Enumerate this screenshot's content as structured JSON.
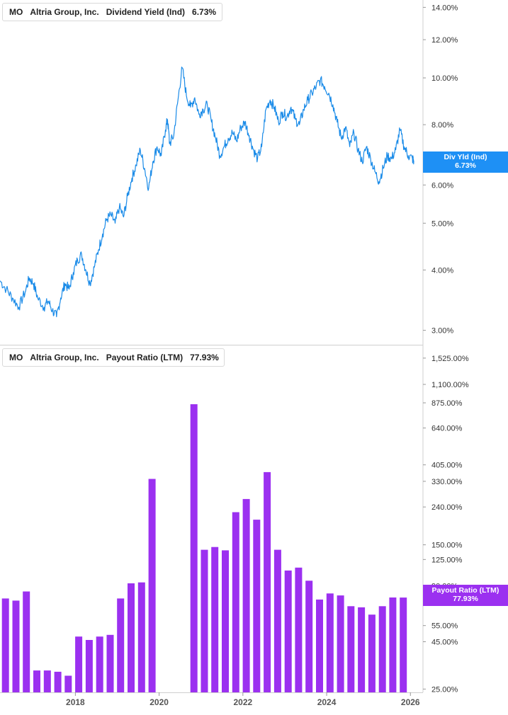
{
  "top_legend": {
    "ticker": "MO",
    "company": "Altria Group, Inc.",
    "metric": "Dividend Yield (Ind)",
    "value": "6.73%"
  },
  "bottom_legend": {
    "ticker": "MO",
    "company": "Altria Group, Inc.",
    "metric": "Payout Ratio (LTM)",
    "value": "77.93%"
  },
  "top_tag": {
    "label": "Div Yld (Ind)",
    "value": "6.73%"
  },
  "bottom_tag": {
    "label": "Payout Ratio (LTM)",
    "value": "77.93%"
  },
  "colors": {
    "yield_line": "#1a8be8",
    "payout_bars": "#9b30f0",
    "yield_tag": "#1e90f5",
    "payout_tag": "#9b30f0"
  },
  "x_ticks": [
    "2018",
    "2020",
    "2022",
    "2024",
    "2026"
  ],
  "chart_data": [
    {
      "type": "line",
      "scale": "log",
      "ylim": [
        2.8,
        14.5
      ],
      "xlim": [
        2016.2,
        2026.3
      ],
      "y_ticks": [
        {
          "value": 14,
          "label": "14.00%"
        },
        {
          "value": 12,
          "label": "12.00%"
        },
        {
          "value": 10,
          "label": "10.00%"
        },
        {
          "value": 8,
          "label": "8.00%"
        },
        {
          "value": 6,
          "label": "6.00%"
        },
        {
          "value": 5,
          "label": "5.00%"
        },
        {
          "value": 4,
          "label": "4.00%"
        },
        {
          "value": 3,
          "label": "3.00%"
        }
      ],
      "series": [
        {
          "x": [
            2016.2,
            2016.35,
            2016.5,
            2016.65,
            2016.8,
            2016.9,
            2017.0,
            2017.1,
            2017.25,
            2017.35,
            2017.45,
            2017.55,
            2017.65,
            2017.75,
            2017.85,
            2017.95,
            2018.05,
            2018.15,
            2018.25,
            2018.35,
            2018.45,
            2018.55,
            2018.65,
            2018.75,
            2018.85,
            2018.95,
            2019.05,
            2019.15,
            2019.25,
            2019.35,
            2019.45,
            2019.55,
            2019.65,
            2019.75,
            2019.85,
            2019.95,
            2020.05,
            2020.15,
            2020.2,
            2020.25,
            2020.35,
            2020.45,
            2020.55,
            2020.65,
            2020.75,
            2020.85,
            2020.95,
            2021.05,
            2021.15,
            2021.25,
            2021.35,
            2021.45,
            2021.55,
            2021.65,
            2021.75,
            2021.85,
            2021.95,
            2022.05,
            2022.15,
            2022.25,
            2022.35,
            2022.45,
            2022.55,
            2022.65,
            2022.75,
            2022.85,
            2022.95,
            2023.05,
            2023.15,
            2023.25,
            2023.35,
            2023.45,
            2023.55,
            2023.65,
            2023.75,
            2023.85,
            2023.95,
            2024.05,
            2024.15,
            2024.25,
            2024.35,
            2024.45,
            2024.55,
            2024.65,
            2024.75,
            2024.85,
            2024.95,
            2025.05,
            2025.15,
            2025.25,
            2025.35,
            2025.45,
            2025.55,
            2025.65,
            2025.75,
            2025.85,
            2025.95,
            2026.05,
            2026.08
          ],
          "y": [
            3.8,
            3.65,
            3.5,
            3.35,
            3.6,
            3.85,
            3.75,
            3.5,
            3.35,
            3.45,
            3.3,
            3.2,
            3.5,
            3.75,
            3.65,
            3.95,
            4.2,
            4.3,
            4.0,
            3.75,
            4.05,
            4.4,
            4.75,
            5.1,
            5.2,
            5.0,
            5.4,
            5.15,
            5.7,
            6.2,
            6.6,
            7.1,
            6.5,
            5.9,
            6.7,
            7.2,
            6.9,
            7.8,
            8.2,
            7.3,
            7.6,
            9.0,
            10.5,
            9.2,
            8.7,
            9.1,
            8.4,
            8.6,
            8.8,
            8.1,
            7.5,
            6.9,
            7.2,
            7.5,
            7.7,
            7.4,
            7.9,
            8.1,
            7.6,
            7.1,
            6.8,
            7.2,
            8.6,
            9.0,
            8.7,
            8.1,
            8.5,
            8.3,
            8.7,
            8.2,
            8.0,
            8.6,
            9.0,
            9.3,
            9.6,
            9.9,
            9.6,
            9.3,
            8.8,
            8.1,
            7.5,
            7.9,
            7.2,
            7.7,
            7.1,
            6.7,
            7.2,
            6.8,
            6.4,
            6.1,
            6.5,
            6.9,
            6.8,
            7.1,
            7.8,
            7.2,
            6.9,
            6.8,
            6.73
          ]
        }
      ]
    },
    {
      "type": "bar",
      "scale": "log",
      "ylim": [
        24,
        1800
      ],
      "xlim": [
        2016.2,
        2026.3
      ],
      "y_ticks": [
        {
          "value": 1525,
          "label": "1,525.00%"
        },
        {
          "value": 1100,
          "label": "1,100.00%"
        },
        {
          "value": 875,
          "label": "875.00%"
        },
        {
          "value": 640,
          "label": "640.00%"
        },
        {
          "value": 405,
          "label": "405.00%"
        },
        {
          "value": 330,
          "label": "330.00%"
        },
        {
          "value": 240,
          "label": "240.00%"
        },
        {
          "value": 150,
          "label": "150.00%"
        },
        {
          "value": 125,
          "label": "125.00%"
        },
        {
          "value": 90,
          "label": "90.00%"
        },
        {
          "value": 55,
          "label": "55.00%"
        },
        {
          "value": 45,
          "label": "45.00%"
        },
        {
          "value": 25,
          "label": "25.00%"
        }
      ],
      "series": [
        {
          "x": [
            2016.33,
            2016.58,
            2016.83,
            2017.08,
            2017.33,
            2017.58,
            2017.83,
            2018.08,
            2018.33,
            2018.58,
            2018.83,
            2019.08,
            2019.33,
            2019.58,
            2019.83,
            2020.83,
            2021.08,
            2021.33,
            2021.58,
            2021.83,
            2022.08,
            2022.33,
            2022.58,
            2022.83,
            2023.08,
            2023.33,
            2023.58,
            2023.83,
            2024.08,
            2024.33,
            2024.58,
            2024.83,
            2025.08,
            2025.33,
            2025.58,
            2025.83
          ],
          "y": [
            77,
            75,
            84,
            31.5,
            31.5,
            31,
            29.5,
            48,
            46,
            48,
            49,
            77,
            93,
            94,
            340,
            860,
            141,
            146,
            140,
            225,
            265,
            205,
            370,
            141,
            109,
            113,
            96,
            76,
            82,
            80,
            70,
            69,
            63,
            70,
            78,
            77.93
          ]
        }
      ]
    }
  ]
}
